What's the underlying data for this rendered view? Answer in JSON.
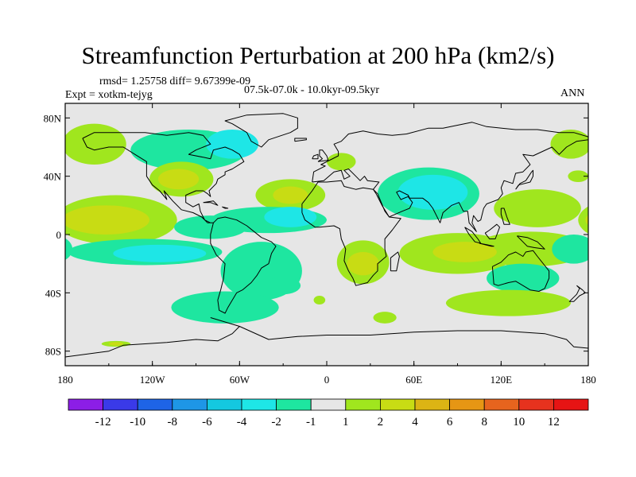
{
  "title": "Streamfunction Perturbation at 200 hPa (km2/s)",
  "stats_line": "rmsd= 1.25758 diff= 9.67399e-09",
  "expt_line": "Expt = xotkm-tejyg",
  "period_line": "07.5k-07.0k - 10.0kyr-09.5kyr",
  "season": "ANN",
  "axes": {
    "x_ticks": [
      "180",
      "120W",
      "60W",
      "0",
      "60E",
      "120E",
      "180"
    ],
    "y_ticks": [
      "80N",
      "40N",
      "0",
      "40S",
      "80S"
    ]
  },
  "colorbar": {
    "labels": [
      "-12",
      "-10",
      "-8",
      "-6",
      "-4",
      "-2",
      "-1",
      "1",
      "2",
      "4",
      "6",
      "8",
      "10",
      "12"
    ],
    "colors": [
      "#8c1ee6",
      "#3a3ae8",
      "#1e64e6",
      "#1e96e6",
      "#14c8e0",
      "#1ee6e6",
      "#1ee6a0",
      "#e6e6e6",
      "#a0e61e",
      "#c8dc14",
      "#dcb414",
      "#e69614",
      "#e6641e",
      "#e6321e",
      "#e61414"
    ]
  },
  "field": {
    "colors": {
      "neutral": "#e6e6e6",
      "neg1": "#1ee6a0",
      "neg2": "#1ee6e6",
      "pos1": "#a0e61e",
      "pos2": "#c8dc14"
    },
    "blobs": [
      {
        "sign": "pos",
        "lon": -160,
        "lat": 62,
        "rlon": 22,
        "rlat": 14,
        "level": 1
      },
      {
        "sign": "neg",
        "lon": -95,
        "lat": 58,
        "rlon": 40,
        "rlat": 14,
        "level": 1
      },
      {
        "sign": "neg",
        "lon": -65,
        "lat": 62,
        "rlon": 18,
        "rlat": 10,
        "level": 2
      },
      {
        "sign": "pos",
        "lon": -100,
        "lat": 38,
        "rlon": 22,
        "rlat": 12,
        "level": 1
      },
      {
        "sign": "pos",
        "lon": -102,
        "lat": 38,
        "rlon": 14,
        "rlat": 7,
        "level": 2
      },
      {
        "sign": "pos",
        "lon": -25,
        "lat": 27,
        "rlon": 24,
        "rlat": 11,
        "level": 1
      },
      {
        "sign": "pos",
        "lon": -25,
        "lat": 27,
        "rlon": 12,
        "rlat": 6,
        "level": 2
      },
      {
        "sign": "pos",
        "lon": 10,
        "lat": 50,
        "rlon": 10,
        "rlat": 6,
        "level": 1
      },
      {
        "sign": "neg",
        "lon": 70,
        "lat": 28,
        "rlon": 35,
        "rlat": 18,
        "level": 1
      },
      {
        "sign": "neg",
        "lon": 73,
        "lat": 29,
        "rlon": 24,
        "rlat": 12,
        "level": 2
      },
      {
        "sign": "pos",
        "lon": 168,
        "lat": 62,
        "rlon": 14,
        "rlat": 10,
        "level": 1
      },
      {
        "sign": "pos",
        "lon": 173,
        "lat": 40,
        "rlon": 7,
        "rlat": 4,
        "level": 1
      },
      {
        "sign": "pos",
        "lon": 145,
        "lat": 18,
        "rlon": 30,
        "rlat": 13,
        "level": 1
      },
      {
        "sign": "pos",
        "lon": -145,
        "lat": 10,
        "rlon": 42,
        "rlat": 17,
        "level": 1
      },
      {
        "sign": "pos",
        "lon": -152,
        "lat": 10,
        "rlon": 30,
        "rlat": 10,
        "level": 2
      },
      {
        "sign": "neg",
        "lon": -80,
        "lat": 5,
        "rlon": 25,
        "rlat": 8,
        "level": 1
      },
      {
        "sign": "neg",
        "lon": -40,
        "lat": 10,
        "rlon": 40,
        "rlat": 9,
        "level": 1
      },
      {
        "sign": "neg",
        "lon": -25,
        "lat": 12,
        "rlon": 18,
        "rlat": 7,
        "level": 2
      },
      {
        "sign": "neg",
        "lon": -125,
        "lat": -12,
        "rlon": 53,
        "rlat": 9,
        "level": 1
      },
      {
        "sign": "neg",
        "lon": -115,
        "lat": -13,
        "rlon": 32,
        "rlat": 6,
        "level": 2
      },
      {
        "sign": "neg",
        "lon": -45,
        "lat": -25,
        "rlon": 28,
        "rlat": 20,
        "level": 1
      },
      {
        "sign": "neg",
        "lon": -70,
        "lat": -50,
        "rlon": 37,
        "rlat": 11,
        "level": 1
      },
      {
        "sign": "neg",
        "lon": -30,
        "lat": -35,
        "rlon": 12,
        "rlat": 6,
        "level": 1
      },
      {
        "sign": "pos",
        "lon": 25,
        "lat": -19,
        "rlon": 18,
        "rlat": 15,
        "level": 1
      },
      {
        "sign": "pos",
        "lon": 25,
        "lat": -20,
        "rlon": 11,
        "rlat": 8,
        "level": 2
      },
      {
        "sign": "pos",
        "lon": -5,
        "lat": -45,
        "rlon": 4,
        "rlat": 3,
        "level": 1
      },
      {
        "sign": "pos",
        "lon": 40,
        "lat": -57,
        "rlon": 8,
        "rlat": 4,
        "level": 1
      },
      {
        "sign": "pos",
        "lon": 90,
        "lat": -13,
        "rlon": 40,
        "rlat": 14,
        "level": 1
      },
      {
        "sign": "pos",
        "lon": 95,
        "lat": -12,
        "rlon": 22,
        "rlat": 7,
        "level": 2
      },
      {
        "sign": "pos",
        "lon": 140,
        "lat": -10,
        "rlon": 40,
        "rlat": 12,
        "level": 1
      },
      {
        "sign": "neg",
        "lon": 135,
        "lat": -30,
        "rlon": 25,
        "rlat": 10,
        "level": 1
      },
      {
        "sign": "neg",
        "lon": 170,
        "lat": -10,
        "rlon": 15,
        "rlat": 10,
        "level": 1
      },
      {
        "sign": "pos",
        "lon": 125,
        "lat": -47,
        "rlon": 43,
        "rlat": 9,
        "level": 1
      },
      {
        "sign": "pos",
        "lon": -145,
        "lat": -75,
        "rlon": 10,
        "rlat": 2,
        "level": 1
      },
      {
        "sign": "pos",
        "lon": -145,
        "lat": -75,
        "rlon": 5,
        "rlat": 1.2,
        "level": 2
      }
    ]
  },
  "coast": [
    [
      [
        -168,
        66
      ],
      [
        -160,
        70
      ],
      [
        -140,
        70
      ],
      [
        -125,
        70
      ],
      [
        -110,
        68
      ],
      [
        -95,
        70
      ],
      [
        -85,
        68
      ],
      [
        -80,
        62
      ],
      [
        -90,
        58
      ],
      [
        -95,
        55
      ],
      [
        -85,
        53
      ],
      [
        -80,
        52
      ],
      [
        -78,
        58
      ],
      [
        -70,
        60
      ],
      [
        -65,
        58
      ],
      [
        -60,
        55
      ],
      [
        -57,
        50
      ],
      [
        -65,
        45
      ],
      [
        -70,
        43
      ],
      [
        -70,
        41
      ],
      [
        -75,
        38
      ],
      [
        -76,
        35
      ],
      [
        -81,
        30
      ],
      [
        -80,
        26
      ],
      [
        -82,
        28
      ],
      [
        -85,
        30
      ],
      [
        -90,
        30
      ],
      [
        -97,
        27
      ],
      [
        -97,
        22
      ],
      [
        -92,
        19
      ],
      [
        -88,
        21
      ],
      [
        -87,
        16
      ],
      [
        -84,
        10
      ],
      [
        -80,
        8
      ],
      [
        -78,
        8
      ],
      [
        -82,
        8
      ],
      [
        -86,
        12
      ],
      [
        -92,
        15
      ],
      [
        -100,
        17
      ],
      [
        -106,
        23
      ],
      [
        -112,
        30
      ],
      [
        -110,
        24
      ],
      [
        -115,
        30
      ],
      [
        -120,
        34
      ],
      [
        -124,
        40
      ],
      [
        -124,
        46
      ],
      [
        -124,
        50
      ],
      [
        -132,
        55
      ],
      [
        -140,
        60
      ],
      [
        -150,
        60
      ],
      [
        -160,
        58
      ],
      [
        -165,
        60
      ],
      [
        -168,
        66
      ]
    ],
    [
      [
        -55,
        82
      ],
      [
        -30,
        83
      ],
      [
        -20,
        80
      ],
      [
        -20,
        73
      ],
      [
        -25,
        70
      ],
      [
        -40,
        65
      ],
      [
        -45,
        60
      ],
      [
        -52,
        64
      ],
      [
        -55,
        70
      ],
      [
        -65,
        76
      ],
      [
        -70,
        78
      ],
      [
        -55,
        82
      ]
    ],
    [
      [
        -78,
        8
      ],
      [
        -75,
        11
      ],
      [
        -70,
        12
      ],
      [
        -62,
        10
      ],
      [
        -55,
        6
      ],
      [
        -50,
        2
      ],
      [
        -45,
        -2
      ],
      [
        -38,
        -5
      ],
      [
        -35,
        -8
      ],
      [
        -38,
        -13
      ],
      [
        -40,
        -20
      ],
      [
        -45,
        -23
      ],
      [
        -48,
        -28
      ],
      [
        -52,
        -33
      ],
      [
        -58,
        -38
      ],
      [
        -62,
        -40
      ],
      [
        -65,
        -45
      ],
      [
        -68,
        -50
      ],
      [
        -70,
        -54
      ],
      [
        -74,
        -52
      ],
      [
        -75,
        -45
      ],
      [
        -73,
        -38
      ],
      [
        -71,
        -30
      ],
      [
        -70,
        -20
      ],
      [
        -76,
        -14
      ],
      [
        -80,
        -6
      ],
      [
        -80,
        0
      ],
      [
        -78,
        8
      ]
    ],
    [
      [
        -10,
        36
      ],
      [
        -9,
        43
      ],
      [
        -1,
        47
      ],
      [
        -4,
        48
      ],
      [
        2,
        51
      ],
      [
        8,
        54
      ],
      [
        8,
        57
      ],
      [
        5,
        62
      ],
      [
        10,
        64
      ],
      [
        15,
        69
      ],
      [
        25,
        71
      ],
      [
        35,
        69
      ],
      [
        45,
        68
      ],
      [
        55,
        69
      ],
      [
        70,
        73
      ],
      [
        80,
        73
      ],
      [
        100,
        77
      ],
      [
        110,
        74
      ],
      [
        130,
        72
      ],
      [
        145,
        72
      ],
      [
        160,
        70
      ],
      [
        170,
        70
      ],
      [
        180,
        67
      ],
      [
        180,
        65
      ],
      [
        172,
        64
      ],
      [
        165,
        60
      ],
      [
        160,
        55
      ],
      [
        155,
        60
      ],
      [
        142,
        54
      ],
      [
        135,
        55
      ],
      [
        140,
        48
      ],
      [
        135,
        43
      ],
      [
        130,
        42
      ],
      [
        128,
        35
      ],
      [
        122,
        37
      ],
      [
        120,
        32
      ],
      [
        121,
        28
      ],
      [
        118,
        24
      ],
      [
        110,
        21
      ],
      [
        108,
        18
      ],
      [
        106,
        10
      ],
      [
        104,
        9
      ],
      [
        101,
        13
      ],
      [
        100,
        8
      ],
      [
        103,
        2
      ],
      [
        98,
        8
      ],
      [
        97,
        16
      ],
      [
        94,
        16
      ],
      [
        91,
        22
      ],
      [
        86,
        20
      ],
      [
        80,
        15
      ],
      [
        78,
        8
      ],
      [
        73,
        18
      ],
      [
        70,
        22
      ],
      [
        66,
        25
      ],
      [
        57,
        25
      ],
      [
        56,
        27
      ],
      [
        50,
        30
      ],
      [
        48,
        29
      ],
      [
        51,
        24
      ],
      [
        56,
        26
      ],
      [
        59,
        22
      ],
      [
        57,
        18
      ],
      [
        52,
        16
      ],
      [
        45,
        13
      ],
      [
        43,
        12
      ],
      [
        40,
        16
      ],
      [
        35,
        28
      ],
      [
        32,
        31
      ],
      [
        36,
        36
      ],
      [
        28,
        37
      ],
      [
        26,
        40
      ],
      [
        23,
        37
      ],
      [
        20,
        40
      ],
      [
        15,
        45
      ],
      [
        12,
        44
      ],
      [
        16,
        40
      ],
      [
        12,
        38
      ],
      [
        10,
        44
      ],
      [
        5,
        43
      ],
      [
        -2,
        37
      ],
      [
        -10,
        36
      ]
    ],
    [
      [
        -17,
        15
      ],
      [
        -17,
        21
      ],
      [
        -10,
        30
      ],
      [
        -6,
        36
      ],
      [
        0,
        36
      ],
      [
        10,
        37
      ],
      [
        12,
        33
      ],
      [
        20,
        31
      ],
      [
        25,
        32
      ],
      [
        32,
        31
      ],
      [
        34,
        28
      ],
      [
        38,
        20
      ],
      [
        43,
        12
      ],
      [
        51,
        11
      ],
      [
        45,
        3
      ],
      [
        40,
        -3
      ],
      [
        40,
        -10
      ],
      [
        41,
        -15
      ],
      [
        35,
        -20
      ],
      [
        35,
        -25
      ],
      [
        32,
        -28
      ],
      [
        28,
        -33
      ],
      [
        20,
        -35
      ],
      [
        18,
        -30
      ],
      [
        15,
        -25
      ],
      [
        12,
        -18
      ],
      [
        13,
        -10
      ],
      [
        10,
        -3
      ],
      [
        9,
        4
      ],
      [
        5,
        6
      ],
      [
        -5,
        5
      ],
      [
        -8,
        5
      ],
      [
        -15,
        10
      ],
      [
        -17,
        15
      ]
    ],
    [
      [
        44,
        -25
      ],
      [
        48,
        -25
      ],
      [
        50,
        -15
      ],
      [
        49,
        -12
      ],
      [
        44,
        -16
      ],
      [
        44,
        -25
      ]
    ],
    [
      [
        114,
        -22
      ],
      [
        115,
        -34
      ],
      [
        118,
        -35
      ],
      [
        125,
        -33
      ],
      [
        130,
        -32
      ],
      [
        135,
        -35
      ],
      [
        140,
        -38
      ],
      [
        146,
        -39
      ],
      [
        150,
        -37
      ],
      [
        153,
        -30
      ],
      [
        153,
        -25
      ],
      [
        145,
        -15
      ],
      [
        142,
        -11
      ],
      [
        137,
        -12
      ],
      [
        135,
        -15
      ],
      [
        130,
        -12
      ],
      [
        125,
        -14
      ],
      [
        120,
        -19
      ],
      [
        114,
        -22
      ]
    ],
    [
      [
        172,
        -35
      ],
      [
        176,
        -38
      ],
      [
        178,
        -40
      ],
      [
        174,
        -42
      ],
      [
        170,
        -46
      ],
      [
        167,
        -46
      ],
      [
        172,
        -41
      ],
      [
        174,
        -37
      ],
      [
        172,
        -35
      ]
    ],
    [
      [
        130,
        31
      ],
      [
        132,
        34
      ],
      [
        140,
        36
      ],
      [
        142,
        40
      ],
      [
        142,
        44
      ],
      [
        141,
        43
      ],
      [
        137,
        37
      ],
      [
        133,
        35
      ],
      [
        130,
        31
      ]
    ],
    [
      [
        95,
        5
      ],
      [
        100,
        2
      ],
      [
        104,
        -3
      ],
      [
        106,
        -6
      ],
      [
        102,
        -5
      ],
      [
        98,
        0
      ],
      [
        95,
        5
      ]
    ],
    [
      [
        105,
        -6
      ],
      [
        110,
        -7
      ],
      [
        115,
        -8
      ],
      [
        113,
        -8
      ],
      [
        105,
        -6
      ]
    ],
    [
      [
        109,
        1
      ],
      [
        112,
        3
      ],
      [
        117,
        7
      ],
      [
        119,
        5
      ],
      [
        116,
        -3
      ],
      [
        112,
        -3
      ],
      [
        109,
        1
      ]
    ],
    [
      [
        131,
        -1
      ],
      [
        138,
        -2
      ],
      [
        145,
        -5
      ],
      [
        150,
        -10
      ],
      [
        143,
        -9
      ],
      [
        138,
        -8
      ],
      [
        131,
        -1
      ]
    ],
    [
      [
        120,
        18
      ],
      [
        122,
        18
      ],
      [
        124,
        12
      ],
      [
        126,
        7
      ],
      [
        122,
        7
      ],
      [
        120,
        14
      ],
      [
        120,
        18
      ]
    ],
    [
      [
        -6,
        50
      ],
      [
        1,
        51
      ],
      [
        0,
        54
      ],
      [
        -3,
        58
      ],
      [
        -5,
        58
      ],
      [
        -5,
        54
      ],
      [
        -3,
        52
      ],
      [
        -6,
        50
      ]
    ],
    [
      [
        -10,
        52
      ],
      [
        -6,
        52
      ],
      [
        -6,
        55
      ],
      [
        -9,
        54
      ],
      [
        -10,
        52
      ]
    ],
    [
      [
        -22,
        64
      ],
      [
        -14,
        65
      ],
      [
        -14,
        66
      ],
      [
        -22,
        66
      ],
      [
        -22,
        64
      ]
    ],
    [
      [
        -80,
        -57
      ],
      [
        -60,
        -63
      ],
      [
        -40,
        -72
      ],
      [
        -20,
        -70
      ],
      [
        0,
        -69
      ],
      [
        30,
        -69
      ],
      [
        60,
        -67
      ],
      [
        90,
        -66
      ],
      [
        120,
        -66
      ],
      [
        150,
        -68
      ],
      [
        165,
        -72
      ],
      [
        170,
        -77
      ],
      [
        180,
        -78
      ]
    ],
    [
      [
        -180,
        -84
      ],
      [
        -150,
        -80
      ],
      [
        -140,
        -76
      ],
      [
        -110,
        -74
      ],
      [
        -90,
        -72
      ],
      [
        -75,
        -73
      ],
      [
        -65,
        -68
      ],
      [
        -60,
        -63
      ]
    ],
    [
      [
        -85,
        22
      ],
      [
        -78,
        23
      ],
      [
        -75,
        20
      ],
      [
        -80,
        22
      ],
      [
        -85,
        22
      ]
    ],
    [
      [
        -72,
        19
      ],
      [
        -70,
        18
      ],
      [
        -68,
        18
      ],
      [
        -72,
        19
      ]
    ]
  ]
}
